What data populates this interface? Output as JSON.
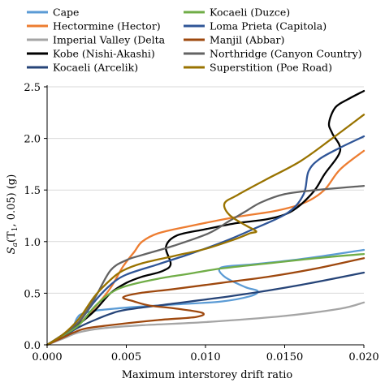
{
  "chart_data": {
    "type": "line",
    "xlabel": "Maximum interstorey drift ratio",
    "ylabel_main": "S",
    "ylabel_sub": "a",
    "ylabel_rest": "(T",
    "ylabel_sub2": "1",
    "ylabel_tail": ", 0.05) (g)",
    "xlim": [
      0,
      0.02
    ],
    "ylim": [
      0,
      2.5
    ],
    "x_ticks": [
      {
        "value": 0,
        "label": "0.000"
      },
      {
        "value": 0.005,
        "label": "0.005"
      },
      {
        "value": 0.01,
        "label": "0.010"
      },
      {
        "value": 0.015,
        "label": "0.0150"
      },
      {
        "value": 0.02,
        "label": "0.020"
      }
    ],
    "y_ticks": [
      {
        "value": 0,
        "label": "0.0"
      },
      {
        "value": 0.5,
        "label": "0.5"
      },
      {
        "value": 1.0,
        "label": "1.0"
      },
      {
        "value": 1.5,
        "label": "1.5"
      },
      {
        "value": 2.0,
        "label": "2.0"
      },
      {
        "value": 2.5,
        "label": "2.5"
      }
    ],
    "grid": "horizontal",
    "legend_position": "top",
    "series": [
      {
        "name": "Cape",
        "color": "#5b9bd5",
        "points": [
          [
            0,
            0
          ],
          [
            0.001,
            0.09
          ],
          [
            0.0016,
            0.17
          ],
          [
            0.0019,
            0.26
          ],
          [
            0.0022,
            0.3
          ],
          [
            0.003,
            0.33
          ],
          [
            0.005,
            0.36
          ],
          [
            0.008,
            0.39
          ],
          [
            0.011,
            0.42
          ],
          [
            0.0128,
            0.47
          ],
          [
            0.0133,
            0.52
          ],
          [
            0.0125,
            0.56
          ],
          [
            0.0112,
            0.66
          ],
          [
            0.011,
            0.75
          ],
          [
            0.013,
            0.78
          ],
          [
            0.016,
            0.83
          ],
          [
            0.02,
            0.92
          ]
        ]
      },
      {
        "name": "Hectormine (Hector)",
        "color": "#ed7d31",
        "points": [
          [
            0,
            0
          ],
          [
            0.001,
            0.08
          ],
          [
            0.002,
            0.2
          ],
          [
            0.003,
            0.36
          ],
          [
            0.004,
            0.55
          ],
          [
            0.0048,
            0.76
          ],
          [
            0.0055,
            0.9
          ],
          [
            0.006,
            1.0
          ],
          [
            0.007,
            1.08
          ],
          [
            0.009,
            1.15
          ],
          [
            0.012,
            1.24
          ],
          [
            0.0145,
            1.3
          ],
          [
            0.0163,
            1.38
          ],
          [
            0.0175,
            1.5
          ],
          [
            0.0185,
            1.7
          ],
          [
            0.02,
            1.88
          ]
        ]
      },
      {
        "name": "Imperial Valley (Delta",
        "color": "#a5a5a5",
        "points": [
          [
            0,
            0
          ],
          [
            0.001,
            0.06
          ],
          [
            0.002,
            0.12
          ],
          [
            0.0035,
            0.16
          ],
          [
            0.006,
            0.19
          ],
          [
            0.01,
            0.22
          ],
          [
            0.015,
            0.28
          ],
          [
            0.0185,
            0.35
          ],
          [
            0.02,
            0.41
          ]
        ]
      },
      {
        "name": "Kobe (Nishi-Akashi)",
        "color": "#000000",
        "points": [
          [
            0,
            0
          ],
          [
            0.001,
            0.09
          ],
          [
            0.002,
            0.2
          ],
          [
            0.003,
            0.33
          ],
          [
            0.004,
            0.5
          ],
          [
            0.005,
            0.6
          ],
          [
            0.006,
            0.66
          ],
          [
            0.0072,
            0.71
          ],
          [
            0.0078,
            0.78
          ],
          [
            0.0075,
            0.95
          ],
          [
            0.0082,
            1.06
          ],
          [
            0.01,
            1.12
          ],
          [
            0.012,
            1.18
          ],
          [
            0.014,
            1.22
          ],
          [
            0.0155,
            1.3
          ],
          [
            0.0168,
            1.48
          ],
          [
            0.0175,
            1.65
          ],
          [
            0.0185,
            1.88
          ],
          [
            0.018,
            2.05
          ],
          [
            0.0178,
            2.15
          ],
          [
            0.0182,
            2.3
          ],
          [
            0.019,
            2.38
          ],
          [
            0.02,
            2.46
          ]
        ]
      },
      {
        "name": "Kocaeli (Arcelik)",
        "color": "#264478",
        "points": [
          [
            0,
            0
          ],
          [
            0.001,
            0.08
          ],
          [
            0.002,
            0.17
          ],
          [
            0.003,
            0.24
          ],
          [
            0.004,
            0.3
          ],
          [
            0.005,
            0.34
          ],
          [
            0.008,
            0.4
          ],
          [
            0.012,
            0.48
          ],
          [
            0.016,
            0.58
          ],
          [
            0.02,
            0.7
          ]
        ]
      },
      {
        "name": "Kocaeli (Duzce)",
        "color": "#70ad47",
        "points": [
          [
            0,
            0
          ],
          [
            0.001,
            0.09
          ],
          [
            0.002,
            0.19
          ],
          [
            0.003,
            0.37
          ],
          [
            0.004,
            0.5
          ],
          [
            0.005,
            0.57
          ],
          [
            0.007,
            0.64
          ],
          [
            0.009,
            0.69
          ],
          [
            0.011,
            0.74
          ],
          [
            0.014,
            0.79
          ],
          [
            0.017,
            0.84
          ],
          [
            0.02,
            0.88
          ]
        ]
      },
      {
        "name": "Loma Prieta (Capitola)",
        "color": "#2f5597",
        "points": [
          [
            0,
            0
          ],
          [
            0.001,
            0.1
          ],
          [
            0.002,
            0.22
          ],
          [
            0.003,
            0.42
          ],
          [
            0.004,
            0.58
          ],
          [
            0.005,
            0.68
          ],
          [
            0.007,
            0.78
          ],
          [
            0.009,
            0.88
          ],
          [
            0.011,
            0.99
          ],
          [
            0.013,
            1.12
          ],
          [
            0.0152,
            1.28
          ],
          [
            0.0162,
            1.46
          ],
          [
            0.0165,
            1.68
          ],
          [
            0.0172,
            1.8
          ],
          [
            0.0185,
            1.91
          ],
          [
            0.02,
            2.02
          ]
        ]
      },
      {
        "name": "Manjil (Abbar)",
        "color": "#9e480e",
        "points": [
          [
            0,
            0
          ],
          [
            0.001,
            0.07
          ],
          [
            0.0017,
            0.12
          ],
          [
            0.0025,
            0.16
          ],
          [
            0.0045,
            0.2
          ],
          [
            0.007,
            0.24
          ],
          [
            0.0094,
            0.27
          ],
          [
            0.0098,
            0.31
          ],
          [
            0.0082,
            0.35
          ],
          [
            0.0065,
            0.38
          ],
          [
            0.0055,
            0.42
          ],
          [
            0.0048,
            0.46
          ],
          [
            0.0058,
            0.5
          ],
          [
            0.008,
            0.54
          ],
          [
            0.011,
            0.6
          ],
          [
            0.014,
            0.66
          ],
          [
            0.017,
            0.74
          ],
          [
            0.02,
            0.84
          ]
        ]
      },
      {
        "name": "Northridge (Canyon Country)",
        "color": "#636363",
        "points": [
          [
            0,
            0
          ],
          [
            0.001,
            0.1
          ],
          [
            0.002,
            0.22
          ],
          [
            0.003,
            0.45
          ],
          [
            0.004,
            0.72
          ],
          [
            0.005,
            0.82
          ],
          [
            0.006,
            0.87
          ],
          [
            0.008,
            0.96
          ],
          [
            0.0102,
            1.08
          ],
          [
            0.0115,
            1.2
          ],
          [
            0.0125,
            1.29
          ],
          [
            0.0135,
            1.38
          ],
          [
            0.015,
            1.46
          ],
          [
            0.017,
            1.5
          ],
          [
            0.02,
            1.54
          ]
        ]
      },
      {
        "name": "Superstition (Poe Road)",
        "color": "#997300",
        "points": [
          [
            0,
            0
          ],
          [
            0.001,
            0.1
          ],
          [
            0.002,
            0.25
          ],
          [
            0.003,
            0.47
          ],
          [
            0.004,
            0.63
          ],
          [
            0.0048,
            0.72
          ],
          [
            0.006,
            0.79
          ],
          [
            0.008,
            0.86
          ],
          [
            0.01,
            0.93
          ],
          [
            0.0118,
            1.02
          ],
          [
            0.0128,
            1.08
          ],
          [
            0.0132,
            1.1
          ],
          [
            0.0125,
            1.16
          ],
          [
            0.0115,
            1.26
          ],
          [
            0.0112,
            1.37
          ],
          [
            0.012,
            1.45
          ],
          [
            0.0138,
            1.6
          ],
          [
            0.016,
            1.78
          ],
          [
            0.018,
            2.0
          ],
          [
            0.02,
            2.23
          ]
        ]
      }
    ]
  }
}
